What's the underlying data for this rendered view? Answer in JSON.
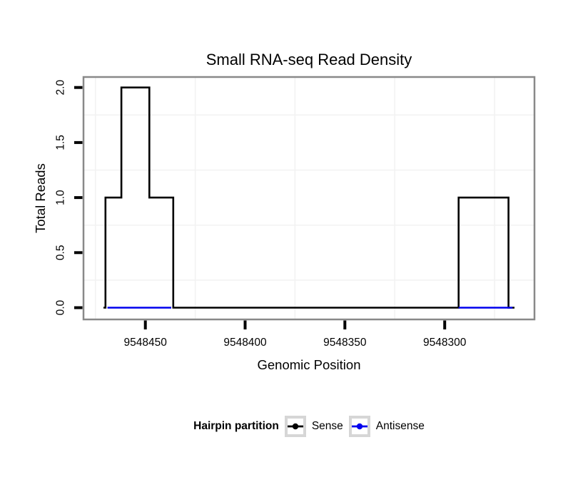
{
  "title": "Small RNA-seq Read Density",
  "axes": {
    "x": {
      "label": "Genomic Position"
    },
    "y": {
      "label": "Total Reads"
    }
  },
  "legend": {
    "title": "Hairpin partition",
    "items": [
      {
        "label": "Sense",
        "color": "#000000"
      },
      {
        "label": "Antisense",
        "color": "#0000ee"
      }
    ]
  },
  "chart_data": {
    "type": "line",
    "subtype": "step-coverage",
    "title": "Small RNA-seq Read Density",
    "xlabel": "Genomic Position",
    "ylabel": "Total Reads",
    "x_reversed": true,
    "xlim": [
      9548481,
      9548255
    ],
    "ylim": [
      -0.107,
      2.095
    ],
    "x_ticks": [
      9548450,
      9548400,
      9548350,
      9548300
    ],
    "y_ticks": [
      0.0,
      0.5,
      1.0,
      1.5,
      2.0
    ],
    "y_tick_labels": [
      "0.0",
      "0.5",
      "1.0",
      "1.5",
      "2.0"
    ],
    "minor_grid_x": [
      9548475,
      9548425,
      9548375,
      9548325,
      9548275
    ],
    "minor_grid_y": [
      0.25,
      0.75,
      1.25,
      1.75
    ],
    "grid_on": true,
    "grid_color": "#f2f2f2",
    "border_color": "#898989",
    "tick_color": "#000000",
    "legend_position": "bottom",
    "legend_title": "Hairpin partition",
    "series": [
      {
        "name": "Sense",
        "color": "#000000",
        "segments": [
          [
            [
              9548471,
              0
            ],
            [
              9548470,
              0
            ],
            [
              9548470,
              1
            ],
            [
              9548462,
              1
            ],
            [
              9548462,
              2
            ],
            [
              9548448,
              2
            ],
            [
              9548448,
              1
            ],
            [
              9548436,
              1
            ],
            [
              9548436,
              0
            ],
            [
              9548293,
              0
            ],
            [
              9548293,
              1
            ],
            [
              9548268,
              1
            ],
            [
              9548268,
              0
            ],
            [
              9548265,
              0
            ]
          ]
        ]
      },
      {
        "name": "Antisense",
        "color": "#0000ee",
        "segments": [
          [
            [
              9548469,
              0
            ],
            [
              9548437,
              0
            ]
          ],
          [
            [
              9548293,
              0
            ],
            [
              9548266,
              0
            ]
          ]
        ]
      }
    ]
  }
}
